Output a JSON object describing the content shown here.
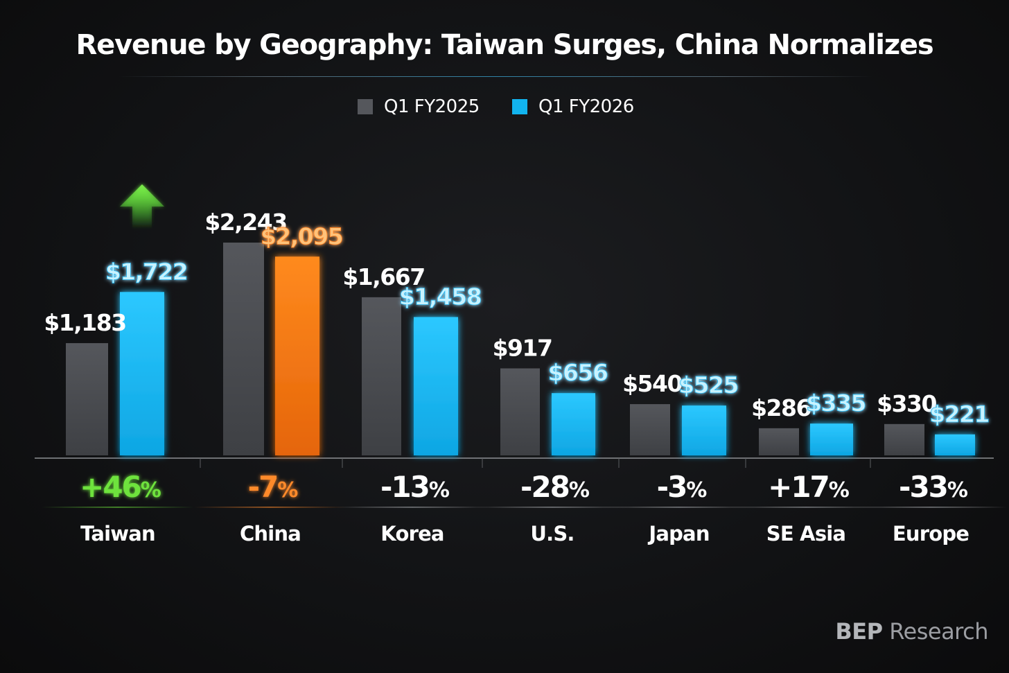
{
  "chart_data": {
    "type": "bar",
    "title": "Revenue by Geography: Taiwan Surges, China Normalizes",
    "categories": [
      "Taiwan",
      "China",
      "Korea",
      "U.S.",
      "Japan",
      "SE Asia",
      "Europe"
    ],
    "series": [
      {
        "name": "Q1 FY2025",
        "values": [
          1183,
          2243,
          1667,
          917,
          540,
          286,
          330
        ],
        "labels": [
          "$1,183",
          "$2,243",
          "$1,667",
          "$917",
          "$540",
          "$286",
          "$330"
        ]
      },
      {
        "name": "Q1 FY2026",
        "values": [
          1722,
          2095,
          1458,
          656,
          525,
          335,
          221
        ],
        "labels": [
          "$1,722",
          "$2,095",
          "$1,458",
          "$656",
          "$525",
          "$335",
          "$221"
        ]
      }
    ],
    "changes": [
      {
        "num": "+46",
        "unit": "%",
        "tone": "up"
      },
      {
        "num": "-7",
        "unit": "%",
        "tone": "down"
      },
      {
        "num": "-13",
        "unit": "%",
        "tone": "neutral"
      },
      {
        "num": "-28",
        "unit": "%",
        "tone": "neutral"
      },
      {
        "num": "-3",
        "unit": "%",
        "tone": "neutral"
      },
      {
        "num": "+17",
        "unit": "%",
        "tone": "neutral"
      },
      {
        "num": "-33",
        "unit": "%",
        "tone": "neutral"
      }
    ],
    "ylim": [
      0,
      2243
    ],
    "grid": false,
    "legend": "top-center",
    "colors": {
      "q1_fy2025": "#4a4c51",
      "q1_fy2026": "#12b4ef",
      "china_fy2026": "#f2730f",
      "up": "#6ee23c",
      "down": "#ff8a2c",
      "neutral": "#ffffff",
      "baseline": "#8e9094"
    }
  },
  "legend": {
    "items": [
      "Q1 FY2025",
      "Q1 FY2026"
    ]
  },
  "brand": {
    "bold": "BEP",
    "rest": " Research"
  }
}
